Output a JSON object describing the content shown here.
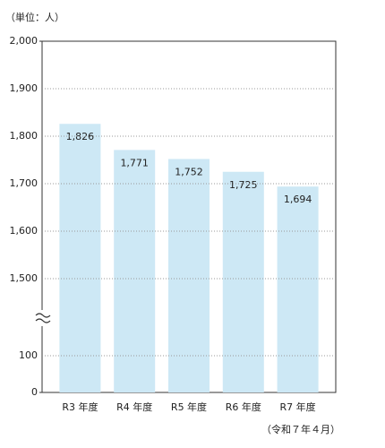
{
  "chart_data": {
    "type": "bar",
    "unit_label": "（単位：人）",
    "note": "（令和７年４月）",
    "categories": [
      "R3 年度",
      "R4 年度",
      "R5 年度",
      "R6 年度",
      "R7 年度"
    ],
    "values": [
      1826,
      1771,
      1752,
      1725,
      1694
    ],
    "value_labels": [
      "1,826",
      "1,771",
      "1,752",
      "1,725",
      "1,694"
    ],
    "color": "#cde8f5",
    "ylim": [
      0,
      2000
    ],
    "axis_break": [
      100,
      1500
    ],
    "yticks": [
      0,
      100,
      {
        "value": 1500,
        "label": "1,500"
      },
      {
        "value": 1600,
        "label": "1,600"
      },
      {
        "value": 1700,
        "label": "1,700"
      },
      {
        "value": 1800,
        "label": "1,800"
      },
      {
        "value": 1900,
        "label": "1,900"
      },
      {
        "value": 2000,
        "label": "2,000"
      }
    ],
    "grid": true
  }
}
